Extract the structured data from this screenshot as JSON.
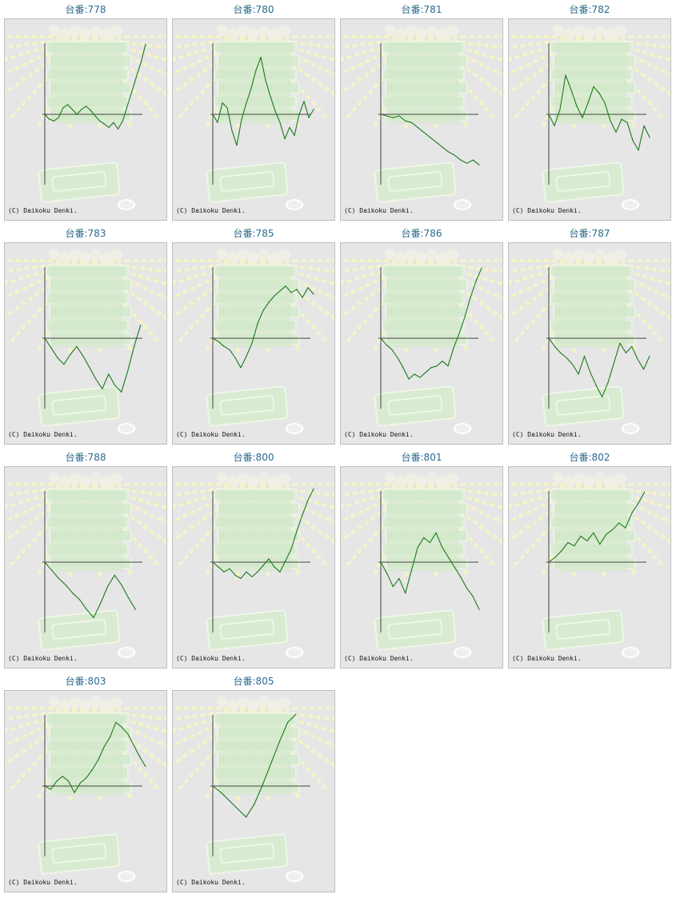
{
  "page": {
    "copyright": "(C) Daikoku Denki.",
    "accent_color": "#1a7a1a",
    "title_color": "#2b6a8f"
  },
  "chart_data": [
    {
      "type": "line",
      "title": "台番:778",
      "values": [
        0,
        -6,
        -8,
        -4,
        8,
        12,
        6,
        0,
        6,
        10,
        5,
        -2,
        -8,
        -12,
        -16,
        -10,
        -18,
        -8,
        10,
        28,
        46,
        64,
        86
      ]
    },
    {
      "type": "line",
      "title": "台番:780",
      "values": [
        0,
        -10,
        14,
        8,
        -20,
        -38,
        -6,
        14,
        32,
        54,
        70,
        42,
        22,
        4,
        -10,
        -30,
        -16,
        -26,
        0,
        16,
        -4,
        6
      ]
    },
    {
      "type": "line",
      "title": "台番:781",
      "values": [
        0,
        -2,
        -4,
        -2,
        -8,
        -10,
        -16,
        -22,
        -28,
        -34,
        -40,
        -46,
        -50,
        -56,
        -60,
        -56,
        -62
      ]
    },
    {
      "type": "line",
      "title": "台番:782",
      "values": [
        0,
        -14,
        6,
        48,
        30,
        10,
        -4,
        14,
        34,
        26,
        14,
        -8,
        -22,
        -6,
        -10,
        -32,
        -44,
        -14,
        -28
      ]
    },
    {
      "type": "line",
      "title": "台番:783",
      "values": [
        0,
        -12,
        -24,
        -32,
        -20,
        -10,
        -22,
        -36,
        -50,
        -62,
        -44,
        -58,
        -66,
        -40,
        -10,
        16
      ]
    },
    {
      "type": "line",
      "title": "台番:785",
      "values": [
        0,
        -4,
        -10,
        -14,
        -24,
        -36,
        -22,
        -6,
        18,
        34,
        44,
        52,
        58,
        64,
        56,
        60,
        50,
        62,
        54
      ]
    },
    {
      "type": "line",
      "title": "台番:786",
      "values": [
        0,
        -8,
        -14,
        -24,
        -36,
        -50,
        -44,
        -48,
        -42,
        -36,
        -34,
        -28,
        -34,
        -12,
        6,
        26,
        50,
        70,
        86
      ]
    },
    {
      "type": "line",
      "title": "台番:787",
      "values": [
        0,
        -10,
        -18,
        -24,
        -32,
        -44,
        -22,
        -42,
        -58,
        -72,
        -54,
        -30,
        -6,
        -18,
        -10,
        -26,
        -38,
        -22
      ]
    },
    {
      "type": "line",
      "title": "台番:788",
      "values": [
        0,
        -10,
        -20,
        -28,
        -38,
        -46,
        -58,
        -68,
        -50,
        -30,
        -16,
        -28,
        -44,
        -58
      ]
    },
    {
      "type": "line",
      "title": "台番:800",
      "values": [
        0,
        -6,
        -12,
        -8,
        -16,
        -20,
        -12,
        -18,
        -12,
        -4,
        4,
        -6,
        -12,
        2,
        16,
        38,
        58,
        76,
        90
      ]
    },
    {
      "type": "line",
      "title": "台番:801",
      "values": [
        0,
        -14,
        -30,
        -20,
        -38,
        -10,
        18,
        30,
        24,
        36,
        18,
        6,
        -6,
        -18,
        -32,
        -42,
        -58
      ]
    },
    {
      "type": "line",
      "title": "台番:802",
      "values": [
        0,
        6,
        14,
        24,
        20,
        32,
        26,
        36,
        22,
        34,
        40,
        48,
        42,
        60,
        72,
        86
      ]
    },
    {
      "type": "line",
      "title": "台番:803",
      "values": [
        0,
        -4,
        6,
        12,
        6,
        -8,
        4,
        10,
        20,
        32,
        48,
        60,
        78,
        72,
        64,
        50,
        36,
        24
      ]
    },
    {
      "type": "line",
      "title": "台番:805",
      "values": [
        0,
        -8,
        -18,
        -28,
        -38,
        -22,
        2,
        28,
        54,
        78,
        88
      ]
    }
  ]
}
